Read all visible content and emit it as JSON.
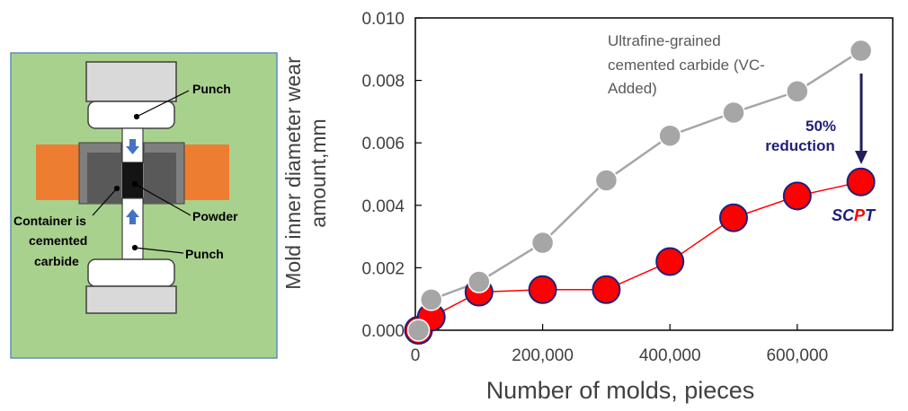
{
  "diagram": {
    "labels": {
      "punch_top": "Punch",
      "punch_bottom": "Punch",
      "powder": "Powder",
      "container_line1": "Container is",
      "container_line2": "cemented",
      "container_line3": "carbide"
    },
    "colors": {
      "background": "#a9d18e",
      "die_orange": "#ed7d31",
      "container_gray": "#808080",
      "punch_gray": "#d9d9d9",
      "powder_black": "#1a1a1a",
      "arrow_blue": "#4472c4"
    }
  },
  "chart_data": {
    "type": "line",
    "xlabel": "Number of molds, pieces",
    "ylabel_line1": "Mold inner diameter wear",
    "ylabel_line2": "amount,mm",
    "xlim": [
      0,
      750000
    ],
    "ylim": [
      0,
      0.01
    ],
    "xticks": [
      0,
      200000,
      400000,
      600000
    ],
    "xtick_labels": [
      "0",
      "200,000",
      "400,000",
      "600,000"
    ],
    "yticks": [
      0,
      0.002,
      0.004,
      0.006,
      0.008,
      0.01
    ],
    "ytick_labels": [
      "0.000",
      "0.002",
      "0.004",
      "0.006",
      "0.008",
      "0.010"
    ],
    "series": [
      {
        "name": "Ultrafine-grained cemented carbide (VC-Added)",
        "color": "#a6a6a6",
        "x": [
          5000,
          25000,
          100000,
          200000,
          300000,
          400000,
          500000,
          600000,
          700000
        ],
        "y": [
          0.0,
          0.00098,
          0.00155,
          0.0028,
          0.0048,
          0.00623,
          0.00697,
          0.00765,
          0.00895
        ]
      },
      {
        "name": "SCPT",
        "color": "#ff0000",
        "edge": "#1f1f7a",
        "x": [
          5000,
          25000,
          100000,
          200000,
          300000,
          400000,
          500000,
          600000,
          700000
        ],
        "y": [
          0.0,
          0.00042,
          0.00122,
          0.0013,
          0.0013,
          0.0022,
          0.0036,
          0.0043,
          0.00475
        ]
      }
    ],
    "annotations": {
      "gray_label_line1": "Ultrafine-grained",
      "gray_label_line2": "cemented carbide (VC-",
      "gray_label_line3": "Added)",
      "reduction_line1": "50%",
      "reduction_line2": "reduction",
      "scpt_prefix": "SC",
      "scpt_mid": "P",
      "scpt_suffix": "T",
      "scpt_dark_color": "#1f1f7a",
      "scpt_mid_color": "#ff0000",
      "arrow_color": "#1f1f5e"
    }
  }
}
